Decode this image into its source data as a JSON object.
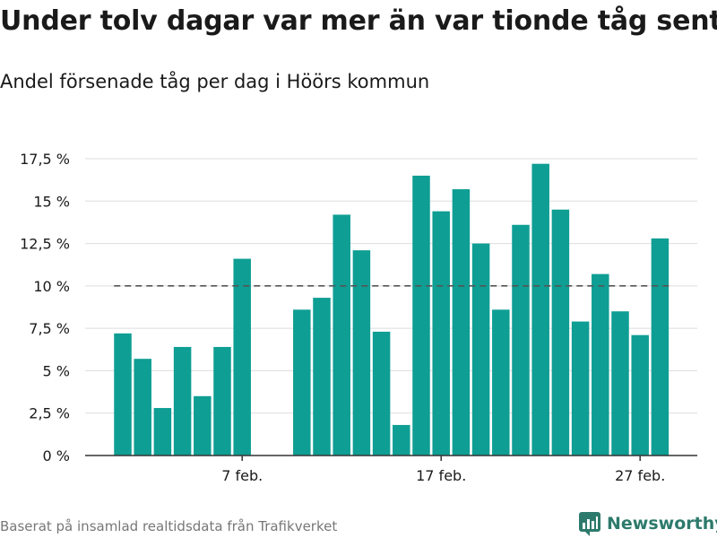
{
  "title": "Under tolv dagar var mer än var tionde tåg sent",
  "subtitle": "Andel försenade tåg per dag i Höörs kommun",
  "source": "Baserat på insamlad realtidsdata från Trafikverket",
  "brand": "Newsworthy",
  "colors": {
    "bar": "#0e9e94",
    "reference": "#555555",
    "grid": "#dddddd",
    "axis": "#333333",
    "brand": "#2d7a6c"
  },
  "chart_data": {
    "type": "bar",
    "unit": "%",
    "ylim": [
      0,
      17.5
    ],
    "yticks": [
      0,
      2.5,
      5,
      7.5,
      10,
      12.5,
      15,
      17.5
    ],
    "ytick_labels": [
      "0 %",
      "2,5 %",
      "5 %",
      "7,5 %",
      "10 %",
      "12,5 %",
      "15 %",
      "17,5 %"
    ],
    "xtick_labels": [
      {
        "day": 7,
        "label": "7 feb."
      },
      {
        "day": 17,
        "label": "17 feb."
      },
      {
        "day": 27,
        "label": "27 feb."
      }
    ],
    "reference_line": 10,
    "grid": true,
    "days": [
      1,
      2,
      3,
      4,
      5,
      6,
      7,
      8,
      9,
      10,
      11,
      12,
      13,
      14,
      15,
      16,
      17,
      18,
      19,
      20,
      21,
      22,
      23,
      24,
      25,
      26,
      27,
      28
    ],
    "values": [
      7.2,
      5.7,
      2.8,
      6.4,
      3.5,
      6.4,
      11.6,
      null,
      null,
      8.6,
      9.3,
      14.2,
      12.1,
      7.3,
      1.8,
      16.5,
      14.4,
      15.7,
      12.5,
      8.6,
      13.6,
      17.2,
      14.5,
      7.9,
      10.7,
      8.5,
      7.1,
      12.8
    ]
  }
}
